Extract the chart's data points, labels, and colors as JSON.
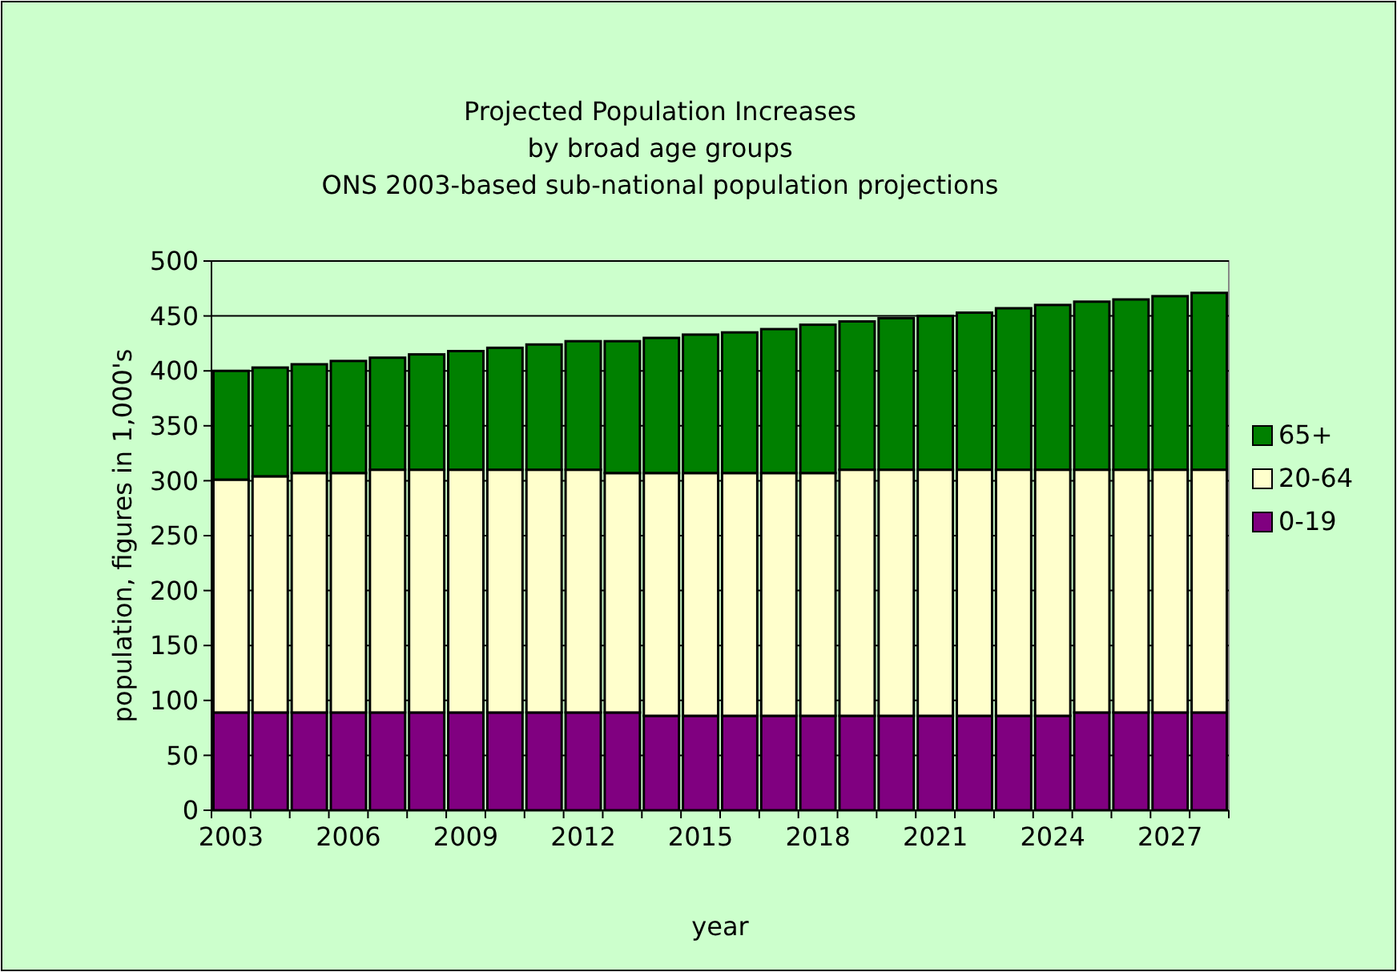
{
  "chart_data": {
    "type": "bar",
    "title": "Projected Population Increases\nby broad age groups",
    "subtitle": "ONS 2003-based sub-national population projections",
    "xlabel": "year",
    "ylabel": "population, figures in 1,000's",
    "categories": [
      "2003",
      null,
      null,
      "2006",
      null,
      null,
      "2009",
      null,
      null,
      "2012",
      null,
      null,
      "2015",
      null,
      null,
      "2018",
      null,
      null,
      "2021",
      null,
      null,
      "2024",
      null,
      null,
      "2027",
      null
    ],
    "series": [
      {
        "name": "0-19",
        "color": "#800080",
        "values": [
          89,
          89,
          89,
          89,
          89,
          89,
          89,
          89,
          89,
          89,
          89,
          86,
          86,
          86,
          86,
          86,
          86,
          86,
          86,
          86,
          86,
          86,
          89,
          89,
          89,
          89
        ]
      },
      {
        "name": "20-64",
        "color": "#ffffcc",
        "values": [
          212,
          215,
          218,
          218,
          221,
          221,
          221,
          221,
          221,
          221,
          218,
          221,
          221,
          221,
          221,
          221,
          224,
          224,
          224,
          224,
          224,
          224,
          221,
          221,
          221,
          221
        ]
      },
      {
        "name": "65+",
        "color": "#008000",
        "values": [
          99,
          99,
          99,
          102,
          102,
          105,
          108,
          111,
          114,
          117,
          120,
          123,
          126,
          128,
          131,
          135,
          135,
          138,
          140,
          143,
          147,
          150,
          153,
          155,
          158,
          161
        ]
      }
    ],
    "stacked": true,
    "ylim": [
      0,
      500
    ],
    "yticks": [
      0,
      50,
      100,
      150,
      200,
      250,
      300,
      350,
      400,
      450,
      500
    ],
    "grid": "y",
    "legend": "right"
  }
}
